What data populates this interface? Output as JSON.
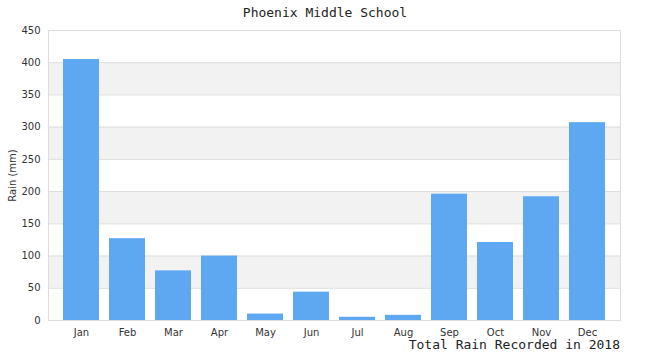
{
  "chart_data": {
    "type": "bar",
    "title": "Phoenix Middle School",
    "caption": "Total Rain Recorded in 2018",
    "y_label": "Rain (mm)",
    "categories": [
      "Jan",
      "Feb",
      "Mar",
      "Apr",
      "May",
      "Jun",
      "Jul",
      "Aug",
      "Sep",
      "Oct",
      "Nov",
      "Dec"
    ],
    "values": [
      405,
      127,
      77,
      100,
      10,
      44,
      5,
      8,
      196,
      121,
      192,
      307
    ],
    "color": "#5ea8f2",
    "ylim": [
      0,
      450
    ],
    "yticks": [
      0,
      50,
      100,
      150,
      200,
      250,
      300,
      350,
      400,
      450
    ],
    "grid": true
  }
}
